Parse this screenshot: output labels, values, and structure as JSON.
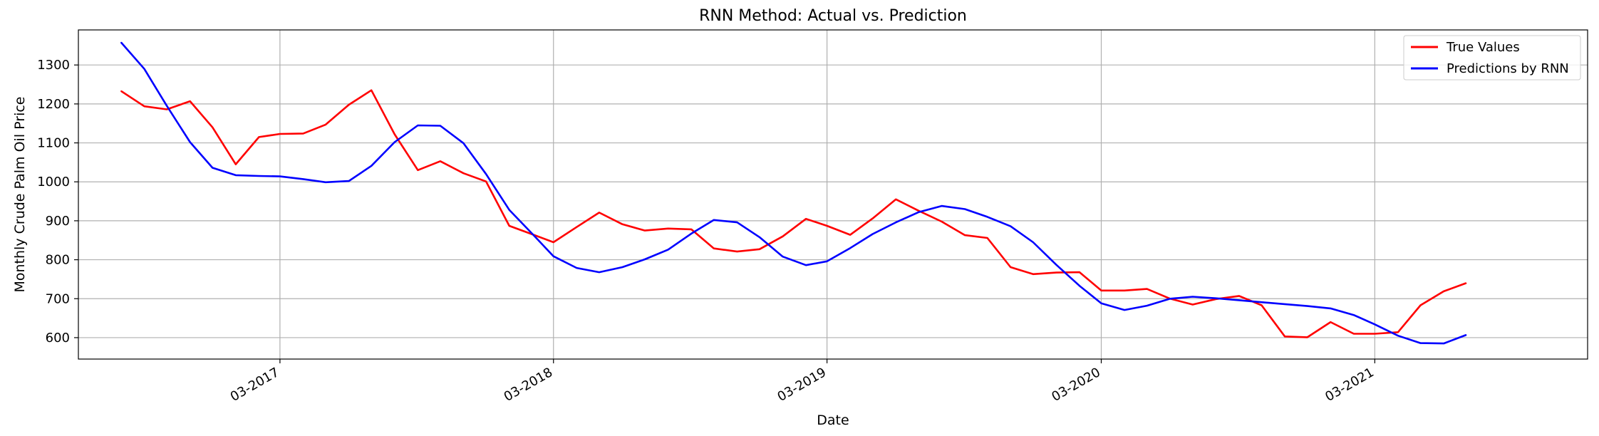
{
  "chart_data": {
    "type": "line",
    "title": "RNN Method: Actual vs. Prediction",
    "xlabel": "Date",
    "ylabel": "Monthly Crude Palm Oil Price",
    "x_ticks": [
      "03-2017",
      "03-2018",
      "03-2019",
      "03-2020",
      "03-2021"
    ],
    "y_ticks": [
      600,
      700,
      800,
      900,
      1000,
      1100,
      1200,
      1300
    ],
    "ylim": [
      545,
      1390
    ],
    "xlim": [
      "2016-06-05",
      "2021-12-10"
    ],
    "grid": true,
    "legend_position": "top-right",
    "x": [
      "2016-08",
      "2016-09",
      "2016-10",
      "2016-11",
      "2016-12",
      "2017-01",
      "2017-02",
      "2017-03",
      "2017-04",
      "2017-05",
      "2017-06",
      "2017-07",
      "2017-08",
      "2017-09",
      "2017-10",
      "2017-11",
      "2017-12",
      "2018-01",
      "2018-02",
      "2018-03",
      "2018-04",
      "2018-05",
      "2018-06",
      "2018-07",
      "2018-08",
      "2018-09",
      "2018-10",
      "2018-11",
      "2018-12",
      "2019-01",
      "2019-02",
      "2019-03",
      "2019-04",
      "2019-05",
      "2019-06",
      "2019-07",
      "2019-08",
      "2019-09",
      "2019-10",
      "2019-11",
      "2019-12",
      "2020-01",
      "2020-02",
      "2020-03",
      "2020-04",
      "2020-05",
      "2020-06",
      "2020-07",
      "2020-08",
      "2020-09",
      "2020-10",
      "2020-11",
      "2020-12",
      "2021-01",
      "2021-02",
      "2021-03",
      "2021-04",
      "2021-05",
      "2021-06",
      "2021-07"
    ],
    "series": [
      {
        "name": "True Values",
        "color": "#ff0000",
        "values": [
          1233,
          1194,
          1186,
          1207,
          1140,
          1045,
          1115,
          1123,
          1124,
          1147,
          1198,
          1235,
          1122,
          1030,
          1053,
          1022,
          1001,
          887,
          865,
          845,
          884,
          921,
          891,
          875,
          880,
          878,
          829,
          821,
          827,
          860,
          905,
          887,
          864,
          906,
          955,
          926,
          898,
          863,
          856,
          781,
          763,
          767,
          768,
          721,
          721,
          725,
          700,
          685,
          699,
          707,
          683,
          603,
          601,
          640,
          610,
          610,
          614,
          683,
          719,
          740
        ]
      },
      {
        "name": "Predictions by RNN",
        "color": "#0000ff",
        "values": [
          1358,
          1290,
          1195,
          1102,
          1036,
          1017,
          1015,
          1014,
          1007,
          999,
          1002,
          1041,
          1102,
          1145,
          1144,
          1099,
          1020,
          928,
          866,
          809,
          779,
          768,
          781,
          801,
          826,
          867,
          902,
          896,
          858,
          808,
          786,
          796,
          830,
          866,
          896,
          922,
          938,
          930,
          910,
          886,
          845,
          787,
          733,
          688,
          671,
          682,
          700,
          705,
          701,
          696,
          691,
          686,
          681,
          675,
          658,
          634,
          605,
          586,
          585,
          607
        ]
      }
    ]
  }
}
